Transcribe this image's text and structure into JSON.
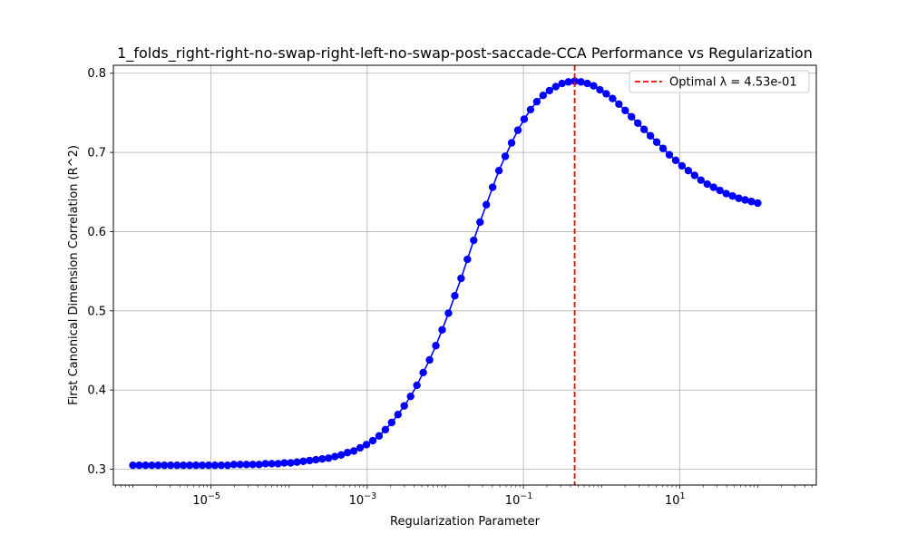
{
  "chart_data": {
    "type": "line",
    "title": "1_folds_right-right-no-swap-right-left-no-swap-post-saccade-CCA Performance vs Regularization",
    "xlabel": "Regularization Parameter",
    "ylabel": "First Canonical Dimension Correlation (R^2)",
    "x_scale": "log",
    "xlim_exponent": [
      -6.25,
      2.75
    ],
    "ylim": [
      0.28,
      0.81
    ],
    "x_ticks": [
      {
        "base": "10",
        "exp": "−5",
        "value": 1e-05
      },
      {
        "base": "10",
        "exp": "−3",
        "value": 0.001
      },
      {
        "base": "10",
        "exp": "−1",
        "value": 0.1
      },
      {
        "base": "10",
        "exp": "1",
        "value": 10
      }
    ],
    "y_ticks": [
      "0.3",
      "0.4",
      "0.5",
      "0.6",
      "0.7",
      "0.8"
    ],
    "grid": true,
    "legend_position": "top-right",
    "colors": {
      "series": "#0000ff",
      "optimal": "#ff0000",
      "grid": "#b0b0b0"
    },
    "series": [
      {
        "x_log10_range": [
          -6,
          2
        ],
        "n_points": 100,
        "values": [
          0.305,
          0.305,
          0.305,
          0.305,
          0.305,
          0.305,
          0.305,
          0.305,
          0.305,
          0.305,
          0.305,
          0.305,
          0.305,
          0.305,
          0.305,
          0.305,
          0.306,
          0.306,
          0.306,
          0.306,
          0.306,
          0.307,
          0.307,
          0.307,
          0.308,
          0.308,
          0.309,
          0.31,
          0.311,
          0.312,
          0.313,
          0.314,
          0.316,
          0.318,
          0.321,
          0.323,
          0.327,
          0.331,
          0.336,
          0.342,
          0.35,
          0.359,
          0.369,
          0.38,
          0.392,
          0.406,
          0.422,
          0.438,
          0.456,
          0.476,
          0.497,
          0.519,
          0.541,
          0.565,
          0.589,
          0.612,
          0.634,
          0.656,
          0.677,
          0.695,
          0.712,
          0.728,
          0.742,
          0.754,
          0.764,
          0.772,
          0.778,
          0.783,
          0.787,
          0.789,
          0.79,
          0.789,
          0.787,
          0.784,
          0.779,
          0.774,
          0.768,
          0.761,
          0.753,
          0.745,
          0.737,
          0.729,
          0.721,
          0.713,
          0.705,
          0.697,
          0.69,
          0.683,
          0.677,
          0.671,
          0.665,
          0.66,
          0.656,
          0.652,
          0.648,
          0.645,
          0.642,
          0.64,
          0.638,
          0.636
        ]
      }
    ],
    "optimal": {
      "x": 0.453,
      "label": "Optimal λ = 4.53e-01"
    }
  }
}
